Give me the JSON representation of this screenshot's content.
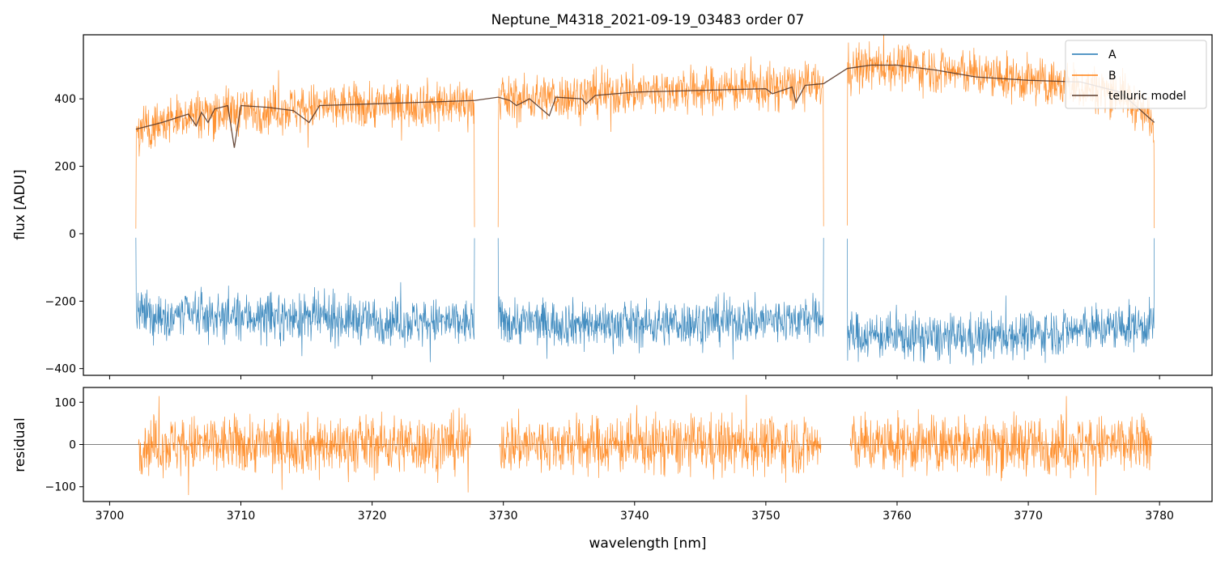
{
  "chart_data": [
    {
      "type": "line",
      "title": "Neptune_M4318_2021-09-19_03483  order 07",
      "xlabel": "",
      "ylabel": "flux [ADU]",
      "xlim": [
        3698,
        3784
      ],
      "ylim": [
        -420,
        590
      ],
      "yticks": [
        -400,
        -200,
        0,
        200,
        400
      ],
      "yticklabels": [
        "−400",
        "−200",
        "0",
        "200",
        "400"
      ],
      "xticks": [
        3700,
        3710,
        3720,
        3730,
        3740,
        3750,
        3760,
        3770,
        3780
      ],
      "grid": false,
      "legend": {
        "position": "top-right",
        "entries": [
          "A",
          "B",
          "telluric model"
        ]
      },
      "segments": [
        [
          3702.0,
          3727.8
        ],
        [
          3729.6,
          3754.4
        ],
        [
          3756.2,
          3779.6
        ]
      ],
      "series": [
        {
          "name": "A",
          "color": "#1f77b4",
          "style": "noisy",
          "mean_points": [
            [
              3702.0,
              -240
            ],
            [
              3715,
              -250
            ],
            [
              3727.8,
              -265
            ],
            [
              3729.6,
              -260
            ],
            [
              3740,
              -270
            ],
            [
              3754.4,
              -250
            ],
            [
              3756.2,
              -300
            ],
            [
              3765,
              -310
            ],
            [
              3779.6,
              -270
            ]
          ],
          "noise_amplitude": 45
        },
        {
          "name": "B",
          "color": "#ff7f0e",
          "style": "noisy",
          "mean_points": [
            [
              3702.0,
              300
            ],
            [
              3706,
              355
            ],
            [
              3715,
              375
            ],
            [
              3727.8,
              390
            ],
            [
              3729.6,
              395
            ],
            [
              3740,
              420
            ],
            [
              3754.4,
              440
            ],
            [
              3756.2,
              490
            ],
            [
              3760,
              500
            ],
            [
              3770,
              455
            ],
            [
              3777,
              420
            ],
            [
              3779.6,
              330
            ]
          ],
          "noise_amplitude": 45
        },
        {
          "name": "telluric model",
          "color": "#5a3a2a",
          "style": "smooth",
          "points": [
            [
              3702.0,
              310
            ],
            [
              3704,
              330
            ],
            [
              3706,
              355
            ],
            [
              3706.6,
              320
            ],
            [
              3707,
              360
            ],
            [
              3707.5,
              330
            ],
            [
              3708,
              370
            ],
            [
              3709,
              380
            ],
            [
              3709.5,
              255
            ],
            [
              3710,
              380
            ],
            [
              3712,
              375
            ],
            [
              3714,
              365
            ],
            [
              3715.2,
              330
            ],
            [
              3716,
              380
            ],
            [
              3720,
              385
            ],
            [
              3724,
              390
            ],
            [
              3727.8,
              395
            ],
            [
              3729.6,
              405
            ],
            [
              3730.5,
              395
            ],
            [
              3731,
              380
            ],
            [
              3732,
              400
            ],
            [
              3733.5,
              350
            ],
            [
              3734,
              405
            ],
            [
              3736,
              400
            ],
            [
              3736.3,
              385
            ],
            [
              3737,
              410
            ],
            [
              3740,
              420
            ],
            [
              3745,
              425
            ],
            [
              3750,
              430
            ],
            [
              3750.5,
              415
            ],
            [
              3752,
              435
            ],
            [
              3752.3,
              390
            ],
            [
              3753,
              440
            ],
            [
              3754.4,
              445
            ],
            [
              3756.2,
              490
            ],
            [
              3758,
              500
            ],
            [
              3760,
              500
            ],
            [
              3763,
              485
            ],
            [
              3766,
              465
            ],
            [
              3770,
              455
            ],
            [
              3774,
              450
            ],
            [
              3777,
              420
            ],
            [
              3779.6,
              330
            ]
          ]
        }
      ]
    },
    {
      "type": "line",
      "title": "",
      "xlabel": "wavelength [nm]",
      "ylabel": "residual",
      "xlim": [
        3698,
        3784
      ],
      "ylim": [
        -135,
        135
      ],
      "yticks": [
        -100,
        0,
        100
      ],
      "yticklabels": [
        "−100",
        "0",
        "100"
      ],
      "xticks": [
        3700,
        3710,
        3720,
        3730,
        3740,
        3750,
        3760,
        3770,
        3780
      ],
      "xticklabels": [
        "3700",
        "3710",
        "3720",
        "3730",
        "3740",
        "3750",
        "3760",
        "3770",
        "3780"
      ],
      "grid": false,
      "zero_line": true,
      "segments": [
        [
          3702.2,
          3727.5
        ],
        [
          3729.7,
          3754.2
        ],
        [
          3756.4,
          3779.4
        ]
      ],
      "series": [
        {
          "name": "B",
          "color": "#ff7f0e",
          "style": "noisy",
          "mean": 0,
          "noise_amplitude": 45
        }
      ]
    }
  ]
}
